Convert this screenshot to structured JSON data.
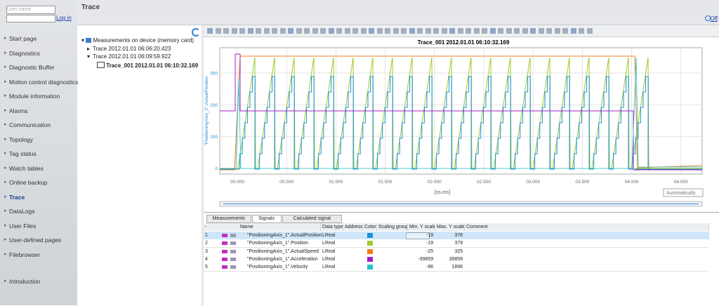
{
  "sidebar": {
    "username_placeholder": "User name",
    "login": "Log in",
    "nav": [
      {
        "label": "Start page"
      },
      {
        "label": "Diagnostics"
      },
      {
        "label": "Diagnostic Buffer"
      },
      {
        "label": "Motion control diagnostics"
      },
      {
        "label": "Module information"
      },
      {
        "label": "Alarms"
      },
      {
        "label": "Communication"
      },
      {
        "label": "Topology"
      },
      {
        "label": "Tag status"
      },
      {
        "label": "Watch tables"
      },
      {
        "label": "Online backup"
      },
      {
        "label": "Trace",
        "active": true
      },
      {
        "label": "DataLogs"
      },
      {
        "label": "User Files"
      },
      {
        "label": "User-defined pages"
      },
      {
        "label": "Filebrowser"
      },
      {
        "label": "Introduction"
      }
    ]
  },
  "header": {
    "title": "Trace",
    "off": "Off"
  },
  "tree": {
    "root": "Measurements on device (memory card)",
    "items": [
      "Trace 2012.01.01 06:06:20.423",
      "Trace 2012.01.01 06:09:59.922"
    ],
    "selected": "Trace_001 2012.01.01 06:10:32.169"
  },
  "plot": {
    "title": "Trace_001 2012.01.01 06:10:32.169",
    "y_label": "\"PositioningAxis_1\".ActualPosition",
    "yticks": [
      0,
      100,
      200,
      300
    ],
    "xticks": [
      "00.000",
      "00.500",
      "01.000",
      "01.500",
      "02.000",
      "02.500",
      "03.000",
      "03.500",
      "04.000",
      "04.500"
    ],
    "x_unit": "[ss.ms]",
    "scaling": "Automatically"
  },
  "tabs": [
    {
      "label": "Measurements"
    },
    {
      "label": "Signals",
      "active": true
    },
    {
      "label": "Calculated signal"
    }
  ],
  "table": {
    "row_header": "-",
    "columns": [
      "Name",
      "Data type",
      "Address",
      "Color",
      "Scaling group",
      "Min. Y scale",
      "Max. Y scale",
      "Comment"
    ],
    "rows": [
      {
        "index": 1,
        "name": "\"PositioningAxis_1\".ActualPosition",
        "type": "LReal",
        "color": "#1b8fd8",
        "min": -19,
        "max": 378
      },
      {
        "index": 2,
        "name": "\"PositioningAxis_1\".Position",
        "type": "LReal",
        "color": "#9ccc2a",
        "min": -19,
        "max": 379
      },
      {
        "index": 3,
        "name": "\"PositioningAxis_1\".ActualSpeed",
        "type": "LReal",
        "color": "#f07d1a",
        "min": -25,
        "max": 325
      },
      {
        "index": 4,
        "name": "\"PositioningAxis_1\".Acceleration",
        "type": "LReal",
        "color": "#a020c8",
        "min": -39859,
        "max": 39859
      },
      {
        "index": 5,
        "name": "\"PositioningAxis_1\".Velocity",
        "type": "LReal",
        "color": "#1fc4c8",
        "min": -96,
        "max": 1896
      }
    ]
  }
}
